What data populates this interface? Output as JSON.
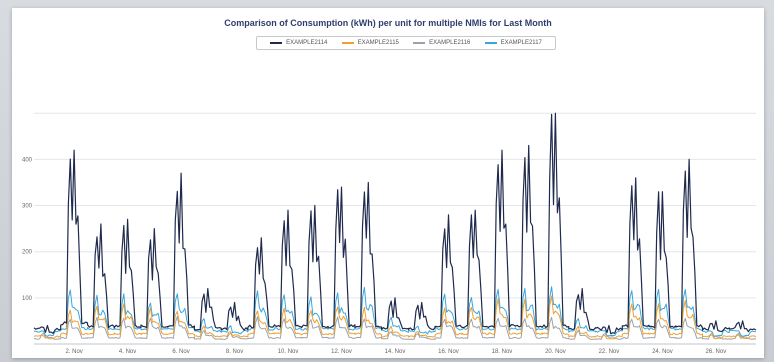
{
  "chart_data": {
    "type": "line",
    "title": "Comparison of Consumption (kWh) per unit for multiple NMIs for Last Month",
    "xlabel": "",
    "ylabel": "",
    "y_ticks": [
      "100",
      "200",
      "300",
      "400"
    ],
    "ylim": [
      0,
      520
    ],
    "grid": true,
    "legend_position": "top",
    "x_ticks": [
      "2. Nov",
      "4. Nov",
      "6. Nov",
      "8. Nov",
      "10. Nov",
      "12. Nov",
      "14. Nov",
      "16. Nov",
      "18. Nov",
      "20. Nov",
      "22. Nov",
      "24. Nov",
      "26. Nov"
    ],
    "days": [
      "1. Nov",
      "2. Nov",
      "3. Nov",
      "4. Nov",
      "5. Nov",
      "6. Nov",
      "7. Nov",
      "8. Nov",
      "9. Nov",
      "10. Nov",
      "11. Nov",
      "12. Nov",
      "13. Nov",
      "14. Nov",
      "15. Nov",
      "16. Nov",
      "17. Nov",
      "18. Nov",
      "19. Nov",
      "20. Nov",
      "21. Nov",
      "22. Nov",
      "23. Nov",
      "24. Nov",
      "25. Nov",
      "26. Nov",
      "27. Nov"
    ],
    "series": [
      {
        "name": "EXAMPLE2114",
        "color": "#1f2a4d",
        "daily_peak": [
          40,
          420,
          260,
          270,
          250,
          370,
          120,
          90,
          230,
          290,
          300,
          340,
          350,
          100,
          90,
          280,
          290,
          420,
          430,
          500,
          120,
          40,
          360,
          330,
          400,
          50,
          50
        ],
        "daily_base": [
          30,
          40,
          35,
          35,
          35,
          35,
          30,
          30,
          35,
          35,
          35,
          35,
          35,
          30,
          30,
          35,
          35,
          35,
          35,
          35,
          30,
          30,
          35,
          35,
          35,
          30,
          30
        ]
      },
      {
        "name": "EXAMPLE2115",
        "color": "#f0a030",
        "daily_peak": [
          20,
          80,
          90,
          90,
          80,
          80,
          40,
          30,
          80,
          80,
          80,
          90,
          80,
          40,
          30,
          80,
          90,
          100,
          100,
          110,
          40,
          20,
          90,
          90,
          100,
          20,
          20
        ],
        "daily_base": [
          15,
          20,
          20,
          20,
          20,
          20,
          15,
          15,
          20,
          20,
          20,
          20,
          20,
          15,
          15,
          20,
          20,
          20,
          20,
          20,
          15,
          15,
          20,
          20,
          20,
          15,
          15
        ]
      },
      {
        "name": "EXAMPLE2116",
        "color": "#9aa3ad",
        "daily_peak": [
          25,
          60,
          60,
          60,
          60,
          60,
          30,
          25,
          60,
          60,
          60,
          60,
          60,
          30,
          25,
          60,
          60,
          60,
          60,
          60,
          30,
          25,
          60,
          60,
          60,
          25,
          25
        ],
        "daily_base": [
          10,
          12,
          12,
          12,
          12,
          12,
          10,
          10,
          12,
          12,
          12,
          12,
          12,
          10,
          10,
          12,
          12,
          12,
          12,
          12,
          10,
          10,
          12,
          12,
          12,
          10,
          10
        ]
      },
      {
        "name": "EXAMPLE2117",
        "color": "#3aa6d8",
        "daily_peak": [
          30,
          130,
          110,
          110,
          100,
          120,
          60,
          40,
          120,
          120,
          110,
          120,
          130,
          60,
          40,
          120,
          110,
          130,
          130,
          130,
          60,
          30,
          130,
          130,
          130,
          30,
          30
        ],
        "daily_base": [
          25,
          30,
          30,
          30,
          30,
          30,
          25,
          25,
          30,
          30,
          30,
          30,
          30,
          25,
          25,
          30,
          30,
          30,
          30,
          30,
          25,
          25,
          30,
          30,
          30,
          25,
          25
        ]
      }
    ]
  }
}
